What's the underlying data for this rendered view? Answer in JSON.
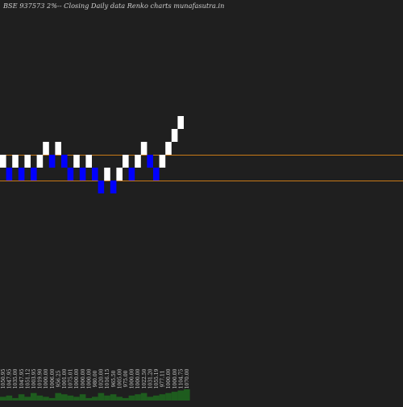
{
  "chart_data": {
    "type": "renko",
    "title": "BSE 937573 2%-- Closing Daily data Renko charts munafasutra.in",
    "colors": {
      "background": "#1f1f1f",
      "up_brick": "#ffffff",
      "down_brick": "#0000ff",
      "reference_line": "#c87a17",
      "volume_bar": "#1e5c1e",
      "text": "#d0d0d0"
    },
    "reference_lines": [
      1005.4,
      985.4
    ],
    "bricks": [
      {
        "low": 995.4,
        "high": 1005.4,
        "dir": "up"
      },
      {
        "low": 985.4,
        "high": 995.4,
        "dir": "down"
      },
      {
        "low": 995.4,
        "high": 1005.4,
        "dir": "up"
      },
      {
        "low": 985.4,
        "high": 995.4,
        "dir": "down"
      },
      {
        "low": 995.4,
        "high": 1005.4,
        "dir": "up"
      },
      {
        "low": 985.4,
        "high": 995.4,
        "dir": "down"
      },
      {
        "low": 995.4,
        "high": 1005.4,
        "dir": "up"
      },
      {
        "low": 1005.4,
        "high": 1015.4,
        "dir": "up"
      },
      {
        "low": 995.4,
        "high": 1005.4,
        "dir": "down"
      },
      {
        "low": 1005.4,
        "high": 1015.4,
        "dir": "up"
      },
      {
        "low": 995.4,
        "high": 1005.4,
        "dir": "down"
      },
      {
        "low": 985.4,
        "high": 995.4,
        "dir": "down"
      },
      {
        "low": 995.4,
        "high": 1005.4,
        "dir": "up"
      },
      {
        "low": 985.4,
        "high": 995.4,
        "dir": "down"
      },
      {
        "low": 995.4,
        "high": 1005.4,
        "dir": "up"
      },
      {
        "low": 985.4,
        "high": 995.4,
        "dir": "down"
      },
      {
        "low": 975.4,
        "high": 985.4,
        "dir": "down"
      },
      {
        "low": 985.4,
        "high": 995.4,
        "dir": "up"
      },
      {
        "low": 975.4,
        "high": 985.4,
        "dir": "down"
      },
      {
        "low": 985.4,
        "high": 995.4,
        "dir": "up"
      },
      {
        "low": 995.4,
        "high": 1005.4,
        "dir": "up"
      },
      {
        "low": 985.4,
        "high": 995.4,
        "dir": "down"
      },
      {
        "low": 995.4,
        "high": 1005.4,
        "dir": "up"
      },
      {
        "low": 1005.4,
        "high": 1015.4,
        "dir": "up"
      },
      {
        "low": 995.4,
        "high": 1005.4,
        "dir": "down"
      },
      {
        "low": 985.4,
        "high": 995.4,
        "dir": "down"
      },
      {
        "low": 995.4,
        "high": 1005.4,
        "dir": "up"
      },
      {
        "low": 1005.4,
        "high": 1015.4,
        "dir": "up"
      },
      {
        "low": 1015.4,
        "high": 1025.4,
        "dir": "up"
      },
      {
        "low": 1025.4,
        "high": 1035.4,
        "dir": "up"
      }
    ],
    "x_labels": [
      "1050.95",
      "1047.95",
      "1035.00",
      "1047.95",
      "1051.12",
      "1003.95",
      "1019.90",
      "1000.00",
      "1006.00",
      "956.25",
      "1001.00",
      "1075.01",
      "1000.00",
      "1000.00",
      "1000.00",
      "980.00",
      "1020.00",
      "1016.15",
      "965.50",
      "1005.00",
      "975.00",
      "1000.00",
      "1000.00",
      "1022.50",
      "1031.20",
      "1055.19",
      "977.11",
      "1000.00",
      "1000.00",
      "1104.75",
      "1070.00"
    ],
    "volumes": [
      3,
      4,
      2,
      5,
      3,
      6,
      4,
      3,
      2,
      6,
      5,
      4,
      3,
      5,
      2,
      3,
      6,
      4,
      5,
      3,
      2,
      4,
      5,
      6,
      3,
      4,
      5,
      6,
      7,
      8,
      9
    ]
  }
}
